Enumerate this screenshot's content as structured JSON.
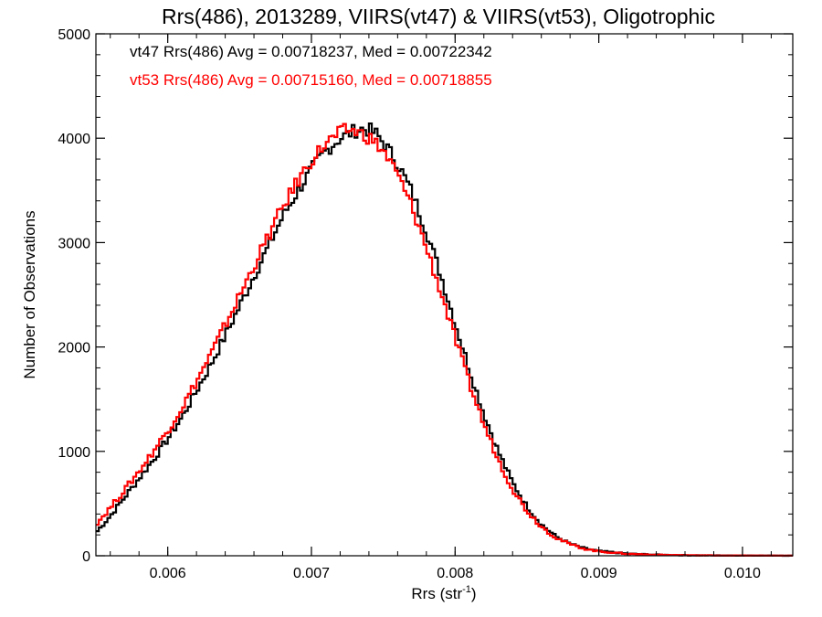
{
  "chart_data": {
    "type": "line",
    "title": "Rrs(486), 2013289, VIIRS(vt47) & VIIRS(vt53), Oligotrophic",
    "xlabel": "Rrs (str",
    "xlabel_sup": "-1",
    "xlabel_close": ")",
    "ylabel": "Number of Observations",
    "xlim": [
      0.0055,
      0.01035
    ],
    "ylim": [
      0,
      5000
    ],
    "x_ticks": [
      0.006,
      0.007,
      0.008,
      0.009,
      0.01
    ],
    "x_tick_labels": [
      "0.006",
      "0.007",
      "0.008",
      "0.009",
      "0.010"
    ],
    "y_ticks": [
      0,
      1000,
      2000,
      3000,
      4000,
      5000
    ],
    "y_tick_labels": [
      "0",
      "1000",
      "2000",
      "3000",
      "4000",
      "5000"
    ],
    "grid": false,
    "step": true,
    "annotations": [
      {
        "text": "vt47 Rrs(486) Avg = 0.00718237, Med = 0.00722342",
        "color": "#000000"
      },
      {
        "text": "vt53 Rrs(486) Avg = 0.00715160, Med = 0.00718855",
        "color": "#ff0000"
      }
    ],
    "series": [
      {
        "color": "#000000",
        "points": [
          [
            0.0055,
            220
          ],
          [
            0.0056,
            380
          ],
          [
            0.0057,
            560
          ],
          [
            0.0058,
            740
          ],
          [
            0.0059,
            920
          ],
          [
            0.006,
            1120
          ],
          [
            0.0061,
            1330
          ],
          [
            0.0062,
            1580
          ],
          [
            0.0063,
            1830
          ],
          [
            0.0064,
            2110
          ],
          [
            0.0065,
            2390
          ],
          [
            0.0066,
            2680
          ],
          [
            0.0067,
            2960
          ],
          [
            0.0068,
            3250
          ],
          [
            0.0069,
            3480
          ],
          [
            0.007,
            3700
          ],
          [
            0.0071,
            3880
          ],
          [
            0.0072,
            4000
          ],
          [
            0.0073,
            4070
          ],
          [
            0.00735,
            4090
          ],
          [
            0.0074,
            4080
          ],
          [
            0.00745,
            4040
          ],
          [
            0.0075,
            3960
          ],
          [
            0.0076,
            3760
          ],
          [
            0.0077,
            3480
          ],
          [
            0.0078,
            3110
          ],
          [
            0.0079,
            2690
          ],
          [
            0.008,
            2230
          ],
          [
            0.0081,
            1780
          ],
          [
            0.0082,
            1360
          ],
          [
            0.0083,
            1000
          ],
          [
            0.0084,
            700
          ],
          [
            0.0085,
            470
          ],
          [
            0.0086,
            300
          ],
          [
            0.0087,
            185
          ],
          [
            0.0088,
            115
          ],
          [
            0.0089,
            70
          ],
          [
            0.009,
            45
          ],
          [
            0.0092,
            20
          ],
          [
            0.0094,
            10
          ],
          [
            0.0096,
            5
          ],
          [
            0.0098,
            3
          ],
          [
            0.01,
            2
          ],
          [
            0.01035,
            1
          ]
        ]
      },
      {
        "color": "#ff0000",
        "points": [
          [
            0.0055,
            300
          ],
          [
            0.0056,
            460
          ],
          [
            0.0057,
            630
          ],
          [
            0.0058,
            810
          ],
          [
            0.0059,
            1000
          ],
          [
            0.006,
            1200
          ],
          [
            0.0061,
            1420
          ],
          [
            0.0062,
            1670
          ],
          [
            0.0063,
            1930
          ],
          [
            0.0064,
            2210
          ],
          [
            0.0065,
            2490
          ],
          [
            0.0066,
            2780
          ],
          [
            0.0067,
            3060
          ],
          [
            0.0068,
            3340
          ],
          [
            0.0069,
            3580
          ],
          [
            0.007,
            3790
          ],
          [
            0.0071,
            3950
          ],
          [
            0.0072,
            4050
          ],
          [
            0.00725,
            4080
          ],
          [
            0.0073,
            4070
          ],
          [
            0.0074,
            4010
          ],
          [
            0.0075,
            3880
          ],
          [
            0.0076,
            3650
          ],
          [
            0.0077,
            3340
          ],
          [
            0.0078,
            2950
          ],
          [
            0.0079,
            2530
          ],
          [
            0.008,
            2080
          ],
          [
            0.0081,
            1650
          ],
          [
            0.0082,
            1260
          ],
          [
            0.0083,
            920
          ],
          [
            0.0084,
            640
          ],
          [
            0.0085,
            430
          ],
          [
            0.0086,
            280
          ],
          [
            0.0087,
            175
          ],
          [
            0.0088,
            110
          ],
          [
            0.0089,
            68
          ],
          [
            0.009,
            42
          ],
          [
            0.0092,
            18
          ],
          [
            0.0094,
            9
          ],
          [
            0.0096,
            5
          ],
          [
            0.0098,
            3
          ],
          [
            0.01,
            2
          ],
          [
            0.01035,
            1
          ]
        ]
      }
    ]
  }
}
